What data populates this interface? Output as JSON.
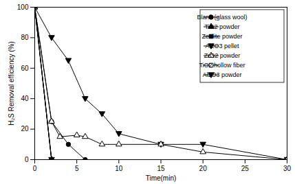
{
  "chart_data": {
    "type": "line",
    "x_label": "Time(min)",
    "y_label": "H₂S Removal efficiency (%)",
    "xlim": [
      0,
      30
    ],
    "xticks": [
      0,
      5,
      10,
      15,
      20,
      25,
      30
    ],
    "ylim": [
      0,
      100
    ],
    "yticks": [
      0,
      20,
      40,
      60,
      80,
      100
    ],
    "grid": false,
    "legend": "top-right",
    "series": [
      {
        "name": "Blank (glass wool)",
        "color": "#000000",
        "marker": "circle",
        "x": [
          0,
          2,
          4,
          6
        ],
        "values": [
          100,
          25,
          10,
          0
        ]
      },
      {
        "name": "TiO2 powder",
        "color": "#000000",
        "marker": "triangle",
        "x": [
          0,
          2
        ],
        "values": [
          100,
          0
        ]
      },
      {
        "name": "Zeolite powder",
        "color": "#000000",
        "marker": "square",
        "x": [
          0,
          2
        ],
        "values": [
          100,
          0
        ]
      },
      {
        "name": "Al2O3 pellet",
        "color": "#000000",
        "marker": "triangle_down",
        "x": [
          0,
          2,
          4,
          6,
          8,
          10,
          15,
          20,
          30
        ],
        "values": [
          100,
          80,
          65,
          40,
          30,
          17,
          10,
          10,
          0
        ]
      },
      {
        "name": "ZrO2 powder",
        "color": "#000000",
        "marker": "triangle_open",
        "x": [
          0,
          2,
          3,
          5,
          6,
          8,
          10,
          15,
          20,
          30
        ],
        "values": [
          100,
          25,
          15,
          16,
          15,
          10,
          10,
          10,
          5,
          0
        ]
      },
      {
        "name": "TiO2 hollow fiber",
        "color": "#000000",
        "marker": "square_open",
        "x": [
          0,
          2
        ],
        "values": [
          100,
          0
        ]
      },
      {
        "name": "Al2O3 powder",
        "color": "#000000",
        "marker": "triangle_down",
        "x": [
          0,
          2
        ],
        "values": [
          100,
          0
        ]
      }
    ]
  }
}
